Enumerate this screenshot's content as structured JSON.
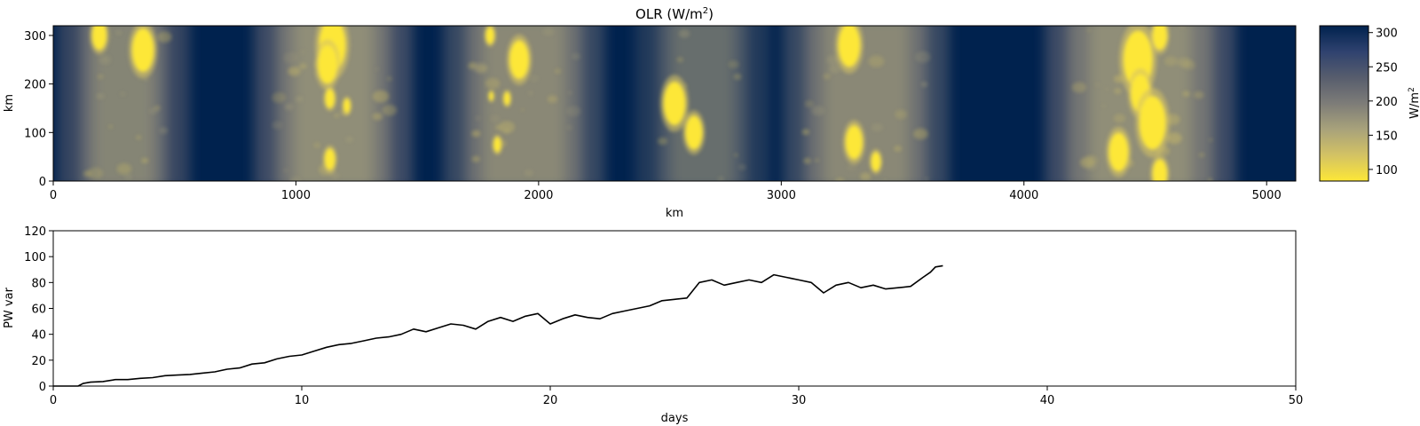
{
  "chart_data": [
    {
      "type": "heatmap",
      "title": "OLR (W/m",
      "title_sup": "2",
      "title_end": ")",
      "xlabel": "km",
      "ylabel": "km",
      "xlim": [
        0,
        5120
      ],
      "ylim": [
        0,
        320
      ],
      "xticks": [
        0,
        1000,
        2000,
        3000,
        4000,
        5000
      ],
      "yticks": [
        0,
        100,
        200,
        300
      ],
      "colorbar": {
        "label": "W/m",
        "label_sup": "2",
        "range": [
          83,
          310
        ],
        "ticks": [
          100,
          150,
          200,
          250,
          300
        ],
        "colormap": "cividis_r",
        "stops": [
          "#fde737",
          "#d3c264",
          "#a8a27b",
          "#7d7c78",
          "#575d6d",
          "#2f426f",
          "#00224e"
        ]
      },
      "convective_bands_km": [
        {
          "x0": 110,
          "x1": 470,
          "intensity": 0.85
        },
        {
          "x0": 920,
          "x1": 1390,
          "intensity": 1.0
        },
        {
          "x0": 1700,
          "x1": 2180,
          "intensity": 0.9
        },
        {
          "x0": 2490,
          "x1": 2860,
          "intensity": 0.55
        },
        {
          "x0": 3100,
          "x1": 3600,
          "intensity": 0.9
        },
        {
          "x0": 4180,
          "x1": 4780,
          "intensity": 1.0
        }
      ],
      "cells_km": [
        [
          370,
          270,
          45
        ],
        [
          190,
          300,
          30
        ],
        [
          1150,
          280,
          55
        ],
        [
          1130,
          240,
          40
        ],
        [
          1140,
          170,
          20
        ],
        [
          1210,
          155,
          15
        ],
        [
          1140,
          45,
          22
        ],
        [
          1800,
          300,
          18
        ],
        [
          1920,
          250,
          40
        ],
        [
          1870,
          170,
          14
        ],
        [
          1805,
          175,
          10
        ],
        [
          1830,
          75,
          16
        ],
        [
          3300,
          80,
          35
        ],
        [
          3390,
          40,
          20
        ],
        [
          3280,
          280,
          45
        ],
        [
          4470,
          250,
          60
        ],
        [
          4560,
          300,
          30
        ],
        [
          4480,
          180,
          40
        ],
        [
          4530,
          120,
          55
        ],
        [
          4390,
          60,
          40
        ],
        [
          4560,
          15,
          30
        ],
        [
          2560,
          160,
          45
        ],
        [
          2640,
          100,
          35
        ]
      ]
    },
    {
      "type": "line",
      "xlabel": "days",
      "ylabel": "PW var",
      "xlim": [
        0,
        50
      ],
      "ylim": [
        0,
        120
      ],
      "xticks": [
        0,
        10,
        20,
        30,
        40,
        50
      ],
      "yticks": [
        0,
        20,
        40,
        60,
        80,
        100,
        120
      ],
      "line_color": "#000000",
      "series": [
        {
          "x": [
            0,
            1,
            1.2,
            1.5,
            2,
            2.5,
            3,
            3.5,
            4,
            4.5,
            5,
            5.5,
            6,
            6.5,
            7,
            7.5,
            8,
            8.5,
            9,
            9.5,
            10,
            10.5,
            11,
            11.5,
            12,
            12.5,
            13,
            13.5,
            14,
            14.5,
            15,
            15.5,
            16,
            16.5,
            17,
            17.5,
            18,
            18.5,
            19,
            19.5,
            20,
            20.5,
            21,
            21.5,
            22,
            22.5,
            23,
            23.5,
            24,
            24.5,
            25,
            25.5,
            26,
            26.5,
            27,
            27.5,
            28,
            28.5,
            29,
            29.5,
            30,
            30.5,
            31,
            31.5,
            32,
            32.5,
            33,
            33.5,
            34,
            34.5,
            35,
            35.3,
            35.5,
            35.8
          ],
          "values": [
            0,
            0,
            2,
            3,
            3.5,
            5,
            5,
            6,
            6.5,
            8,
            8.5,
            9,
            10,
            11,
            13,
            14,
            17,
            18,
            21,
            23,
            24,
            27,
            30,
            32,
            33,
            35,
            37,
            38,
            40,
            44,
            42,
            45,
            48,
            47,
            44,
            50,
            53,
            50,
            54,
            56,
            48,
            52,
            55,
            53,
            52,
            56,
            58,
            60,
            62,
            66,
            67,
            68,
            80,
            82,
            78,
            80,
            82,
            80,
            86,
            84,
            82,
            80,
            72,
            78,
            80,
            76,
            78,
            75,
            76,
            77,
            84,
            88,
            92,
            93
          ]
        }
      ]
    }
  ]
}
